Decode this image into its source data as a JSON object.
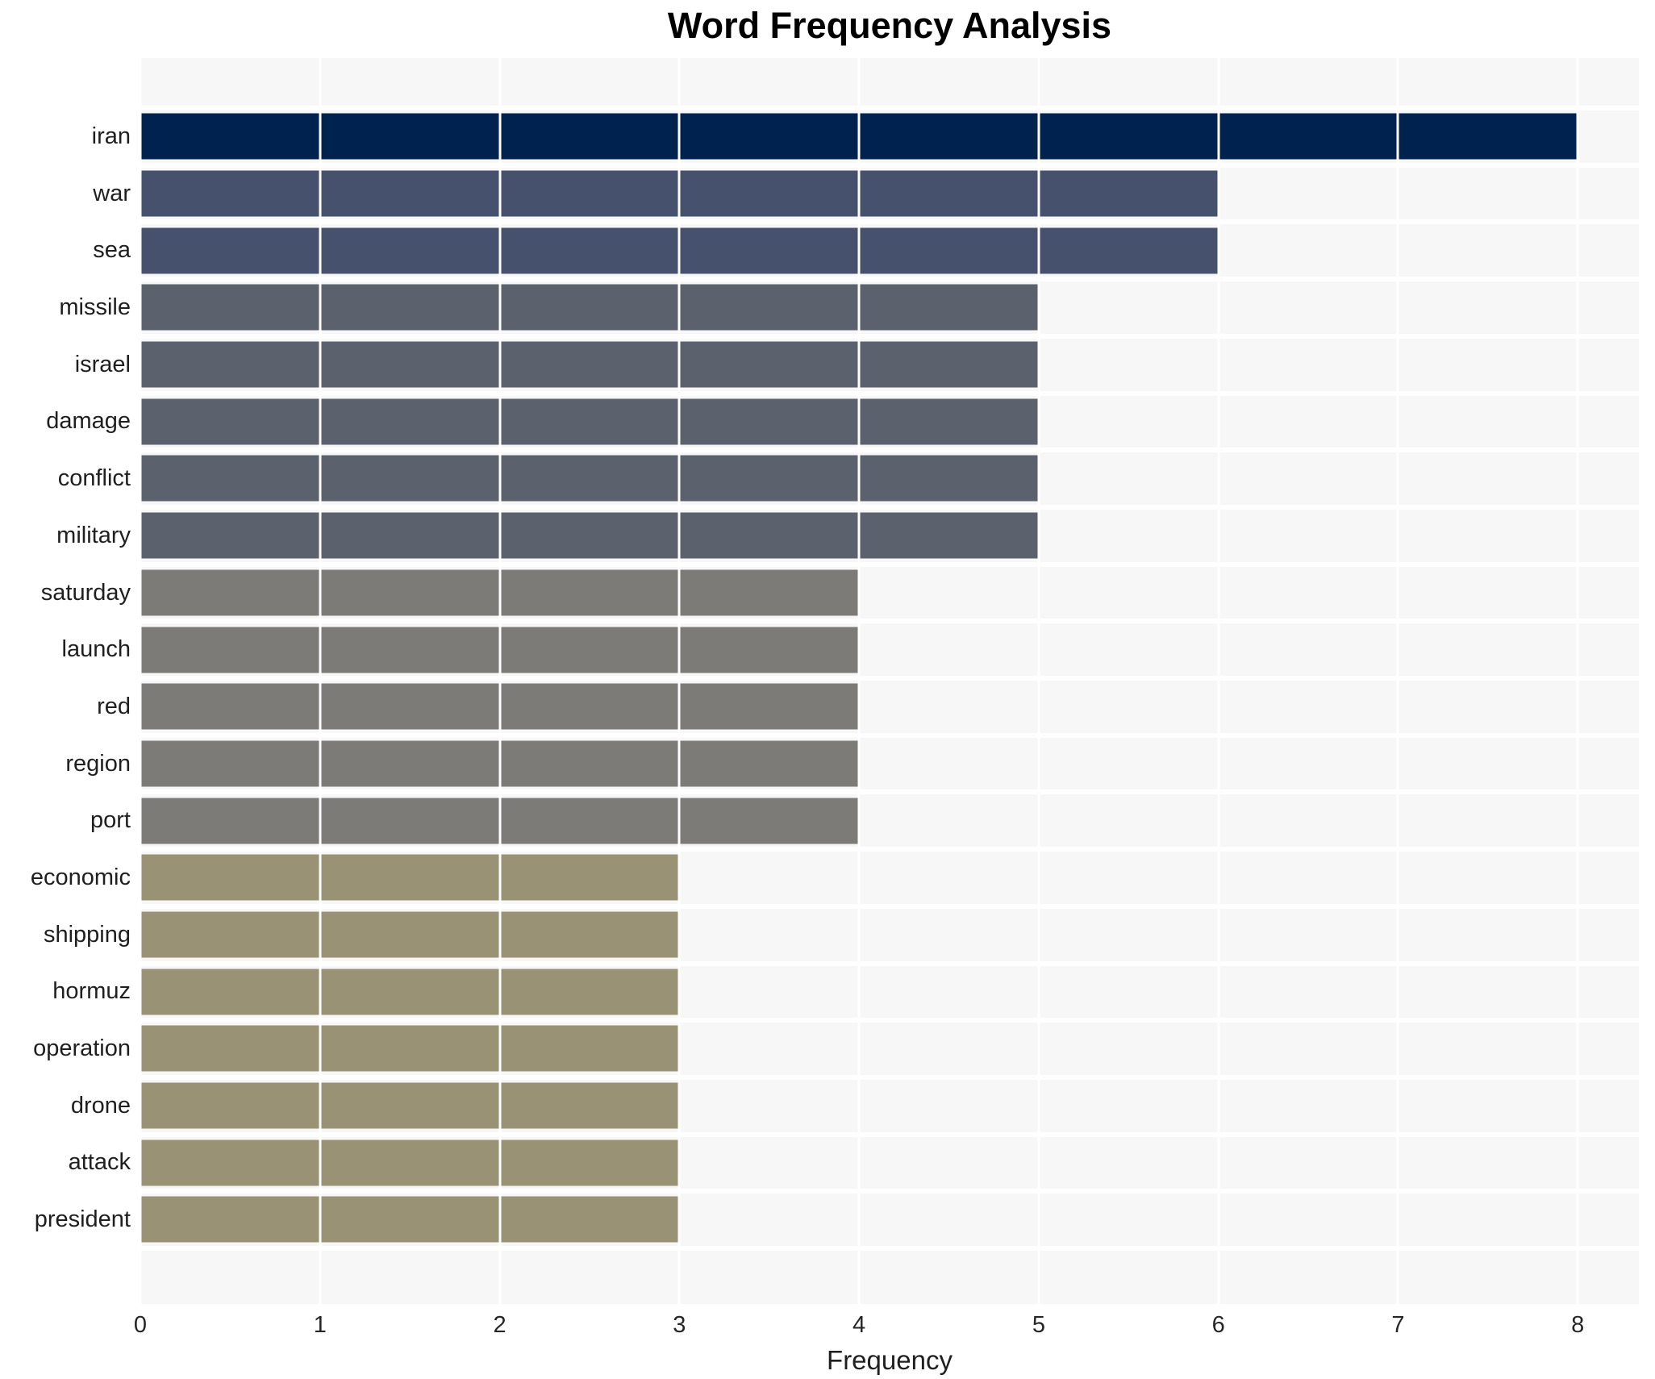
{
  "chart_data": {
    "type": "bar",
    "orientation": "horizontal",
    "title": "Word Frequency Analysis",
    "xlabel": "Frequency",
    "ylabel": "",
    "categories": [
      "iran",
      "war",
      "sea",
      "missile",
      "israel",
      "damage",
      "conflict",
      "military",
      "saturday",
      "launch",
      "red",
      "region",
      "port",
      "economic",
      "shipping",
      "hormuz",
      "operation",
      "drone",
      "attack",
      "president"
    ],
    "values": [
      8,
      6,
      6,
      5,
      5,
      5,
      5,
      5,
      4,
      4,
      4,
      4,
      4,
      3,
      3,
      3,
      3,
      3,
      3,
      3
    ],
    "colors": [
      "#00224e",
      "#45516d",
      "#45516d",
      "#5c616e",
      "#5c616e",
      "#5c616e",
      "#5c616e",
      "#5c616e",
      "#7c7b78",
      "#7c7b78",
      "#7c7b78",
      "#7c7b78",
      "#7c7b78",
      "#9a9274",
      "#9a9274",
      "#9a9274",
      "#9a9274",
      "#9a9274",
      "#9a9274",
      "#9a9274"
    ],
    "x_ticks": [
      0,
      1,
      2,
      3,
      4,
      5,
      6,
      7,
      8
    ],
    "xlim": [
      0,
      8.34
    ],
    "grid": true,
    "legend": false,
    "plot_background": "#f7f7f7",
    "grid_color": "#ffffff"
  }
}
